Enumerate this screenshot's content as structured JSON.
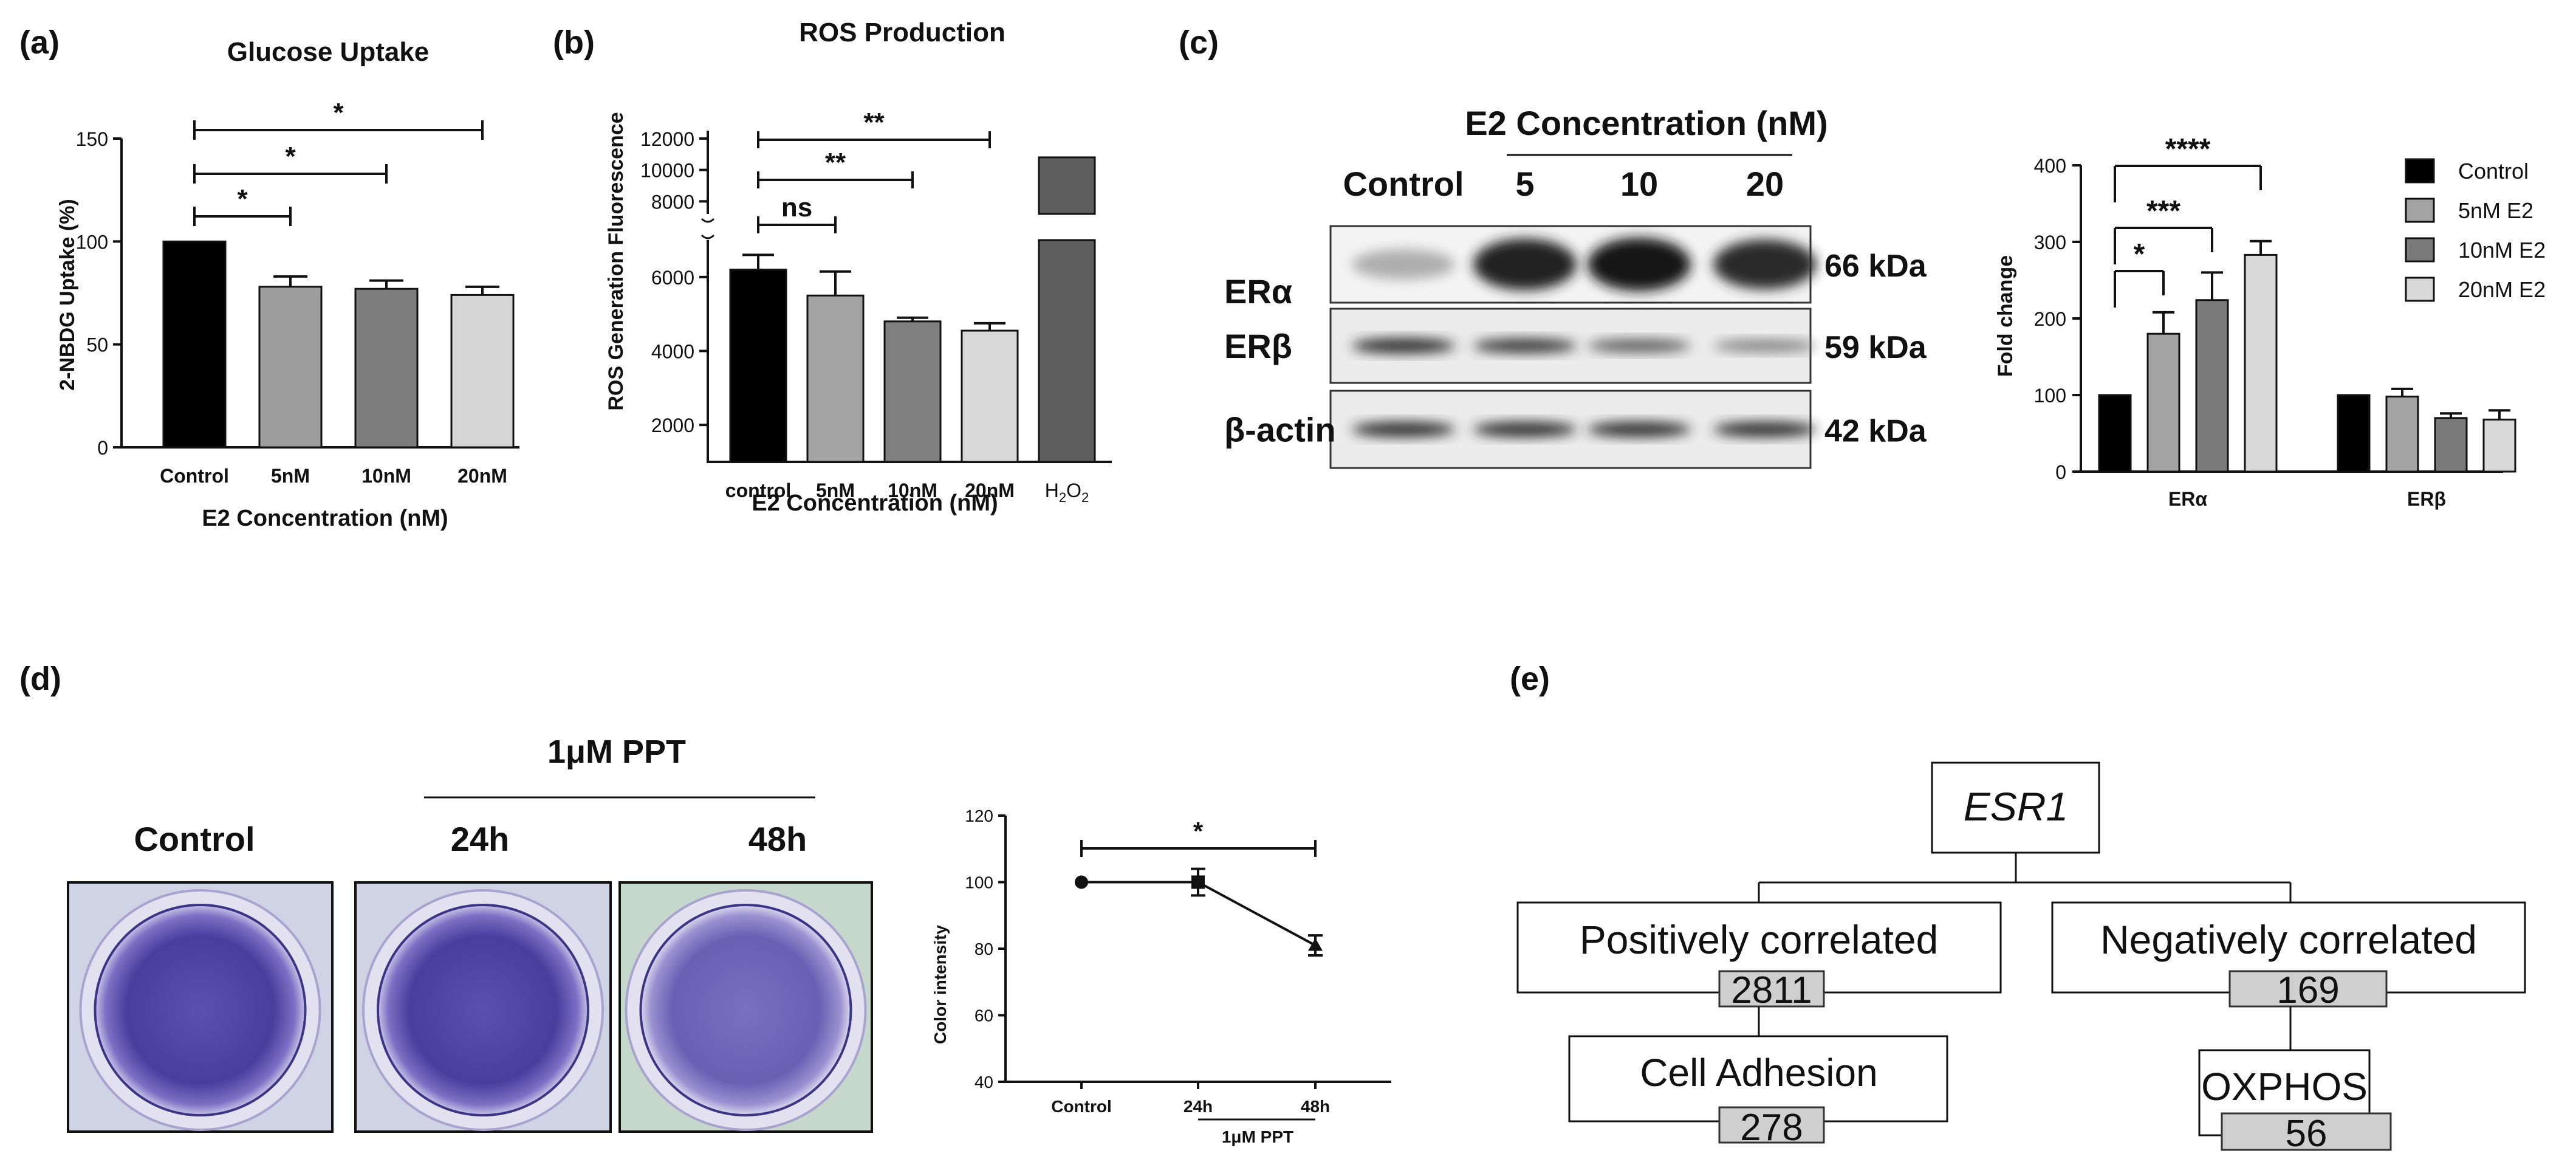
{
  "panels": {
    "a": {
      "letter": "(a)",
      "chart_data": {
        "type": "bar",
        "title": "Glucose Uptake",
        "xlabel": "E2 Concentration (nM)",
        "ylabel": "2-NBDG Uptake (%)",
        "categories": [
          "Control",
          "5nM",
          "10nM",
          "20nM"
        ],
        "values": [
          100,
          78,
          77,
          74
        ],
        "errors": [
          0,
          5,
          4,
          4
        ],
        "colors": [
          "#000000",
          "#9e9e9e",
          "#7d7d7d",
          "#d6d6d6"
        ],
        "ylim": [
          0,
          150
        ],
        "yticks": [
          0,
          50,
          100,
          150
        ],
        "significance": [
          {
            "from": 0,
            "to": 1,
            "label": "*"
          },
          {
            "from": 0,
            "to": 2,
            "label": "*"
          },
          {
            "from": 0,
            "to": 3,
            "label": "*"
          }
        ]
      }
    },
    "b": {
      "letter": "(b)",
      "chart_data": {
        "type": "bar",
        "title": "ROS Production",
        "xlabel": "E2 Concentration (nM)",
        "ylabel": "ROS Generation Fluorescence",
        "categories": [
          "control",
          "5nM",
          "10nM",
          "20nM",
          "H2O2"
        ],
        "values": [
          6200,
          5500,
          4800,
          4550,
          10800
        ],
        "errors": [
          400,
          650,
          100,
          200,
          0
        ],
        "colors": [
          "#000000",
          "#a3a3a3",
          "#808080",
          "#d9d9d9",
          "#5e5e5e"
        ],
        "broken_axis": {
          "lower": [
            1000,
            7000
          ],
          "upper": [
            7200,
            12500
          ]
        },
        "yticks_lower": [
          2000,
          4000,
          6000
        ],
        "yticks_upper": [
          8000,
          10000,
          12000
        ],
        "significance": [
          {
            "from": 0,
            "to": 1,
            "label": "ns"
          },
          {
            "from": 0,
            "to": 2,
            "label": "**"
          },
          {
            "from": 0,
            "to": 3,
            "label": "**"
          }
        ]
      }
    },
    "c": {
      "letter": "(c)",
      "blot": {
        "header": "E2 Concentration (nM)",
        "lanes": [
          "Control",
          "5",
          "10",
          "20"
        ],
        "rows": [
          {
            "name": "ERα",
            "size": "66 kDa",
            "intensity": [
              0.35,
              0.95,
              1.0,
              0.9
            ]
          },
          {
            "name": "ERβ",
            "size": "59 kDa",
            "intensity": [
              0.9,
              0.85,
              0.7,
              0.55
            ]
          },
          {
            "name": "β-actin",
            "size": "42 kDa",
            "intensity": [
              0.9,
              0.9,
              0.9,
              0.9
            ]
          }
        ]
      },
      "chart_data": {
        "type": "bar",
        "title": "",
        "xlabel": "",
        "ylabel": "Fold change",
        "categories": [
          "ERα",
          "ERβ"
        ],
        "series": [
          {
            "name": "Control",
            "values": [
              100,
              100
            ],
            "errors": [
              0,
              0
            ],
            "color": "#000000"
          },
          {
            "name": "5nM E2",
            "values": [
              180,
              98
            ],
            "errors": [
              28,
              10
            ],
            "color": "#a3a3a3"
          },
          {
            "name": "10nM E2",
            "values": [
              224,
              70
            ],
            "errors": [
              36,
              6
            ],
            "color": "#7a7a7a"
          },
          {
            "name": "20nM E2",
            "values": [
              283,
              68
            ],
            "errors": [
              18,
              12
            ],
            "color": "#d9d9d9"
          }
        ],
        "ylim": [
          0,
          400
        ],
        "yticks": [
          0,
          100,
          200,
          300,
          400
        ],
        "legend": "top-right",
        "significance": [
          {
            "from": 0,
            "to": 1,
            "label": "*"
          },
          {
            "from": 0,
            "to": 2,
            "label": "***"
          },
          {
            "from": 0,
            "to": 3,
            "label": "****"
          }
        ]
      }
    },
    "d": {
      "letter": "(d)",
      "group_header": "1μM PPT",
      "photo_labels": [
        "Control",
        "24h",
        "48h"
      ],
      "chart_data": {
        "type": "line",
        "title": "",
        "xlabel": "1μM PPT",
        "ylabel": "Color intensity",
        "categories": [
          "Control",
          "24h",
          "48h"
        ],
        "values": [
          100,
          100,
          81
        ],
        "errors": [
          0,
          4,
          3
        ],
        "ylim": [
          40,
          120
        ],
        "yticks": [
          40,
          60,
          80,
          100,
          120
        ],
        "significance": [
          {
            "from": 0,
            "to": 2,
            "label": "*"
          }
        ]
      }
    },
    "e": {
      "letter": "(e)",
      "root": "ESR1",
      "branches": [
        {
          "label": "Positively correlated",
          "count": "2811",
          "child": {
            "label": "Cell Adhesion",
            "count": "278"
          }
        },
        {
          "label": "Negatively correlated",
          "count": "169",
          "child": {
            "label": "OXPHOS",
            "count": "56"
          }
        }
      ]
    }
  }
}
